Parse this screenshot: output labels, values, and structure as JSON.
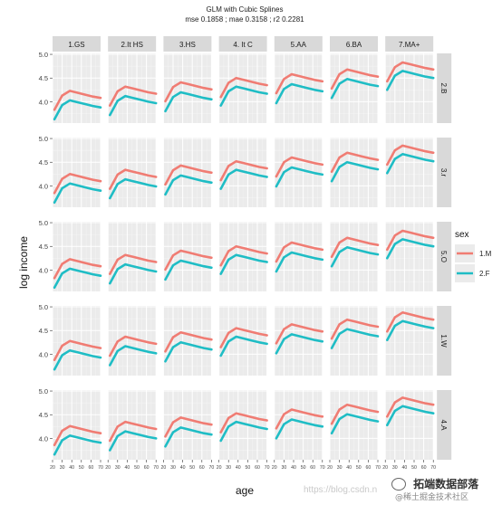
{
  "chart_data": {
    "type": "line",
    "title": "GLM with Cubic Splines",
    "subtitle": "mse 0.1858 ; mae 0.3158 ; r2 0.2281",
    "xlabel": "age",
    "ylabel": "log income",
    "xlim": [
      20,
      70
    ],
    "ylim": [
      3.55,
      5.02
    ],
    "x_ticks": [
      "20",
      "30",
      "40",
      "50",
      "60",
      "70"
    ],
    "y_ticks": [
      "4.0",
      "4.5",
      "5.0"
    ],
    "col_facets": [
      "1.GS",
      "2.It HS",
      "3.HS",
      "4. It C",
      "5.AA",
      "6.BA",
      "7.MA+"
    ],
    "row_facets": [
      "2.B",
      "3.r",
      "5.O",
      "1.W",
      "4.A"
    ],
    "legend": {
      "title": "sex",
      "position": "right"
    },
    "series": [
      {
        "name": "1.M",
        "color": "#f07c73"
      },
      {
        "name": "2.F",
        "color": "#1fbdc5"
      }
    ],
    "x": [
      22,
      30,
      38,
      46,
      54,
      62,
      70
    ],
    "curve_shape": [
      0.0,
      0.3,
      0.4,
      0.36,
      0.32,
      0.28,
      0.25
    ],
    "base_by_col": {
      "1.M": [
        3.83,
        3.92,
        4.01,
        4.1,
        4.18,
        4.28,
        4.43
      ],
      "2.F": [
        3.63,
        3.72,
        3.8,
        3.92,
        3.97,
        4.08,
        4.25
      ]
    },
    "row_offset": [
      0.0,
      0.02,
      0.0,
      0.05,
      0.03
    ],
    "grid": true
  },
  "watermark": {
    "line1": "拓端数据部落",
    "line2": "@稀土掘金技术社区",
    "url": "https://blog.csdn.n"
  }
}
